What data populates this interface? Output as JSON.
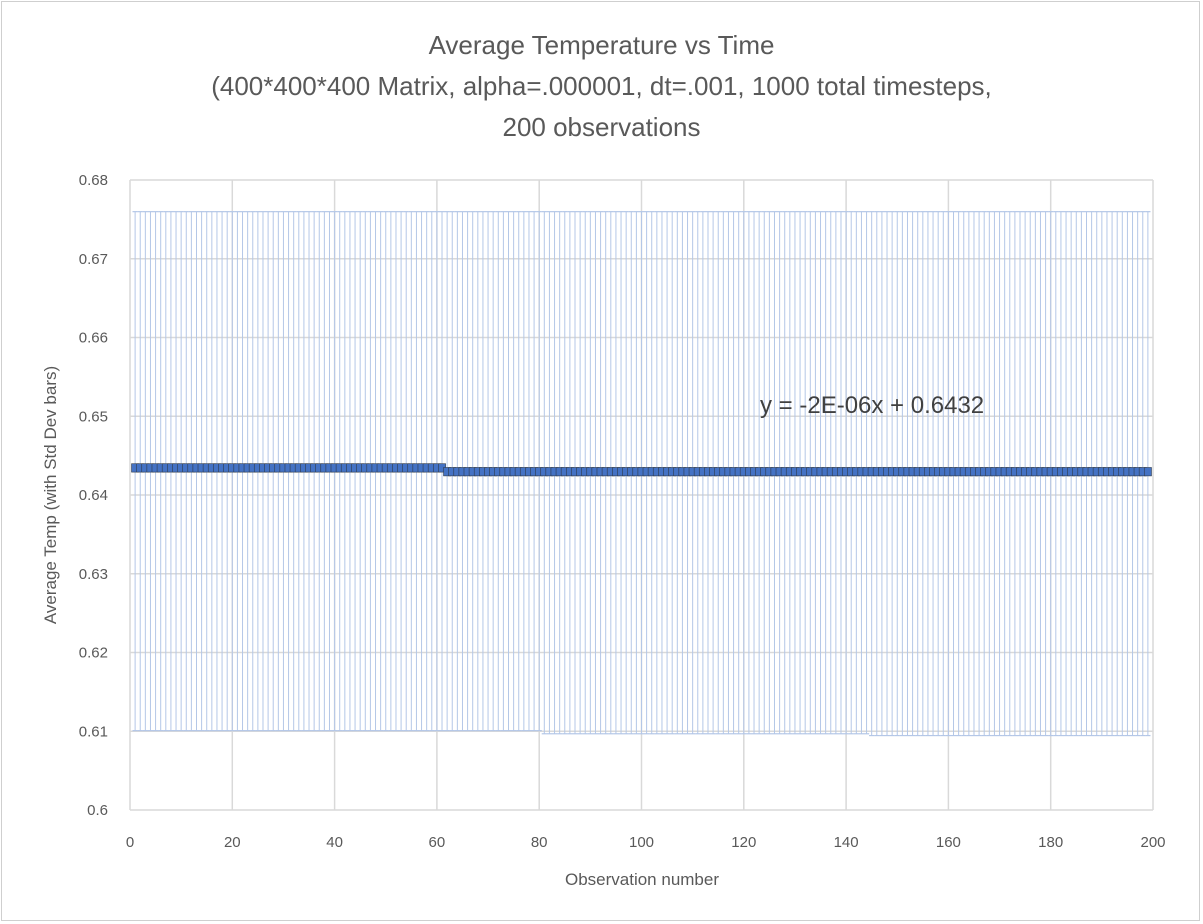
{
  "chart_data": {
    "type": "scatter",
    "title_lines": [
      "Average Temperature vs Time",
      "(400*400*400 Matrix, alpha=.000001, dt=.001, 1000 total timesteps,",
      "200 observations"
    ],
    "xlabel": "Observation number",
    "ylabel": "Average Temp (with Std Dev bars)",
    "xlim": [
      0,
      200
    ],
    "ylim": [
      0.6,
      0.68
    ],
    "x_ticks": [
      "0",
      "20",
      "40",
      "60",
      "80",
      "100",
      "120",
      "140",
      "160",
      "180",
      "200"
    ],
    "y_ticks": [
      "0.6",
      "0.61",
      "0.62",
      "0.63",
      "0.64",
      "0.65",
      "0.66",
      "0.67",
      "0.68"
    ],
    "grid": true,
    "trendline_label": "y = -2E-06x + 0.6432",
    "trendline": {
      "slope": -2e-06,
      "intercept": 0.6432
    },
    "series": [
      {
        "n_points": 199,
        "x_start": 1,
        "x_end": 199,
        "segments": [
          {
            "x_from": 1,
            "x_to": 61,
            "mean": 0.64344,
            "std_lower": 0.61008,
            "std_upper": 0.67598
          },
          {
            "x_from": 62,
            "x_to": 80,
            "mean": 0.64296,
            "std_lower": 0.61008,
            "std_upper": 0.67598
          },
          {
            "x_from": 81,
            "x_to": 144,
            "mean": 0.64296,
            "std_lower": 0.60968,
            "std_upper": 0.67598
          },
          {
            "x_from": 145,
            "x_to": 199,
            "mean": 0.64296,
            "std_lower": 0.60945,
            "std_upper": 0.67598
          }
        ]
      }
    ],
    "colors": {
      "marker": "#4472c4",
      "marker_edge": "#2f3a4a",
      "error_bar": "#b4c7e7",
      "grid": "#d9d9d9",
      "text": "#595959"
    }
  }
}
